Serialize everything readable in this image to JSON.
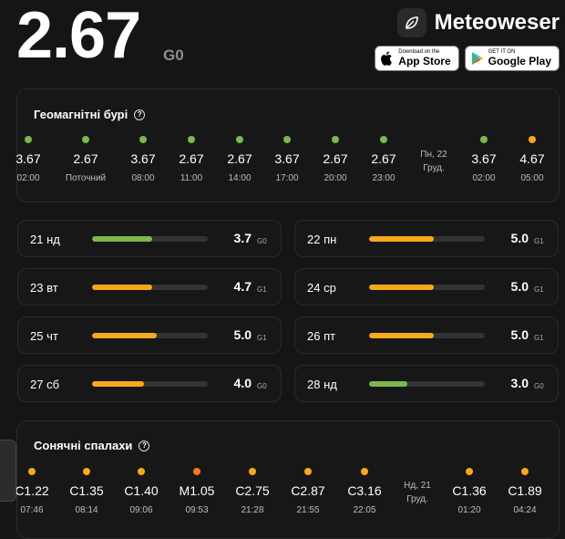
{
  "header": {
    "kp_value": "2.67",
    "kp_scale": "G0",
    "brand_name": "Meteoweser",
    "app_store": {
      "small": "Download on the",
      "big": "App Store"
    },
    "google_play": {
      "small": "GET IT ON",
      "big": "Google Play"
    }
  },
  "colors": {
    "green": "#7cb84a",
    "orange": "#f7a81b",
    "track": "#333333"
  },
  "geomagnetic": {
    "title": "Геомагнітні бурі",
    "columns": [
      {
        "value": "3.67",
        "label": "02:00",
        "level": "green"
      },
      {
        "value": "2.67",
        "label": "Поточний",
        "level": "green"
      },
      {
        "value": "3.67",
        "label": "08:00",
        "level": "green"
      },
      {
        "value": "2.67",
        "label": "11:00",
        "level": "green"
      },
      {
        "value": "2.67",
        "label": "14:00",
        "level": "green"
      },
      {
        "value": "3.67",
        "label": "17:00",
        "level": "green"
      },
      {
        "value": "2.67",
        "label": "20:00",
        "level": "green"
      },
      {
        "value": "2.67",
        "label": "23:00",
        "level": "green"
      },
      {
        "value": "3.67",
        "label": "02:00",
        "level": "green"
      },
      {
        "value": "4.67",
        "label": "05:00",
        "level": "orange"
      }
    ],
    "day_separator": {
      "line1": "Пн, 22",
      "line2": "Груд."
    }
  },
  "forecast": [
    {
      "day": "21 нд",
      "value": "3.7",
      "scale": "G0",
      "fill": 0.52,
      "level": "green"
    },
    {
      "day": "22 пн",
      "value": "5.0",
      "scale": "G1",
      "fill": 0.56,
      "level": "orange"
    },
    {
      "day": "23 вт",
      "value": "4.7",
      "scale": "G1",
      "fill": 0.52,
      "level": "orange"
    },
    {
      "day": "24 ср",
      "value": "5.0",
      "scale": "G1",
      "fill": 0.56,
      "level": "orange"
    },
    {
      "day": "25 чт",
      "value": "5.0",
      "scale": "G1",
      "fill": 0.56,
      "level": "orange"
    },
    {
      "day": "26 пт",
      "value": "5.0",
      "scale": "G1",
      "fill": 0.56,
      "level": "orange"
    },
    {
      "day": "27 сб",
      "value": "4.0",
      "scale": "G0",
      "fill": 0.45,
      "level": "orange"
    },
    {
      "day": "28 нд",
      "value": "3.0",
      "scale": "G0",
      "fill": 0.33,
      "level": "green"
    }
  ],
  "flares": {
    "title": "Сонячні спалахи",
    "columns": [
      {
        "value": "C1.22",
        "label": "07:46",
        "level": "orange"
      },
      {
        "value": "C1.35",
        "label": "08:14",
        "level": "orange"
      },
      {
        "value": "C1.40",
        "label": "09:06",
        "level": "orange"
      },
      {
        "value": "M1.05",
        "label": "09:53",
        "level": "orange-red"
      },
      {
        "value": "C2.75",
        "label": "21:28",
        "level": "orange"
      },
      {
        "value": "C2.87",
        "label": "21:55",
        "level": "orange"
      },
      {
        "value": "C3.16",
        "label": "22:05",
        "level": "orange"
      },
      {
        "value": "C1.36",
        "label": "01:20",
        "level": "orange"
      },
      {
        "value": "C1.89",
        "label": "04:24",
        "level": "orange"
      }
    ],
    "day_separator": {
      "line1": "Нд, 21",
      "line2": "Груд."
    }
  }
}
